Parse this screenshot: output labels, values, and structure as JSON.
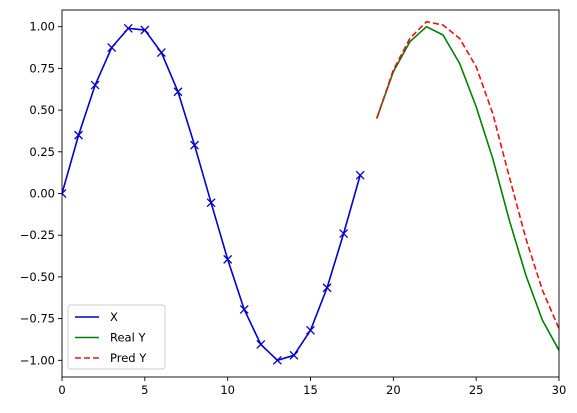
{
  "chart_data": {
    "type": "line",
    "xlim": [
      0,
      30
    ],
    "ylim": [
      -1.1,
      1.1
    ],
    "xticks": [
      0,
      5,
      10,
      15,
      20,
      25,
      30
    ],
    "yticks": [
      -1.0,
      -0.75,
      -0.5,
      -0.25,
      0.0,
      0.25,
      0.5,
      0.75,
      1.0
    ],
    "xtick_labels": [
      "0",
      "5",
      "10",
      "15",
      "20",
      "25",
      "30"
    ],
    "ytick_labels": [
      "−1.00",
      "−0.75",
      "−0.50",
      "−0.25",
      "0.00",
      "0.25",
      "0.50",
      "0.75",
      "1.00"
    ],
    "grid": false,
    "legend_position": "lower-left",
    "series": [
      {
        "name": "X",
        "color": "#0000cc",
        "style": "solid",
        "marker": "x",
        "x": [
          0,
          1,
          2,
          3,
          4,
          5,
          6,
          7,
          8,
          9,
          10,
          11,
          12,
          13,
          14,
          15,
          16,
          17,
          18
        ],
        "y": [
          0.0,
          0.35,
          0.65,
          0.875,
          0.99,
          0.98,
          0.845,
          0.61,
          0.29,
          -0.055,
          -0.395,
          -0.695,
          -0.905,
          -1.0,
          -0.97,
          -0.82,
          -0.565,
          -0.24,
          0.11
        ]
      },
      {
        "name": "Real Y",
        "color": "#008000",
        "style": "solid",
        "marker": "",
        "x": [
          19,
          20,
          21,
          22,
          23,
          24,
          25,
          26,
          27,
          28,
          29,
          30
        ],
        "y": [
          0.45,
          0.73,
          0.91,
          1.0,
          0.95,
          0.78,
          0.52,
          0.21,
          -0.16,
          -0.49,
          -0.76,
          -0.94
        ]
      },
      {
        "name": "Pred Y",
        "color": "#ee1111",
        "style": "dashed",
        "marker": "",
        "x": [
          19,
          20,
          21,
          22,
          23,
          24,
          25,
          26,
          27,
          28,
          29,
          30
        ],
        "y": [
          0.45,
          0.74,
          0.93,
          1.03,
          1.01,
          0.93,
          0.76,
          0.48,
          0.1,
          -0.27,
          -0.58,
          -0.81
        ]
      }
    ]
  }
}
